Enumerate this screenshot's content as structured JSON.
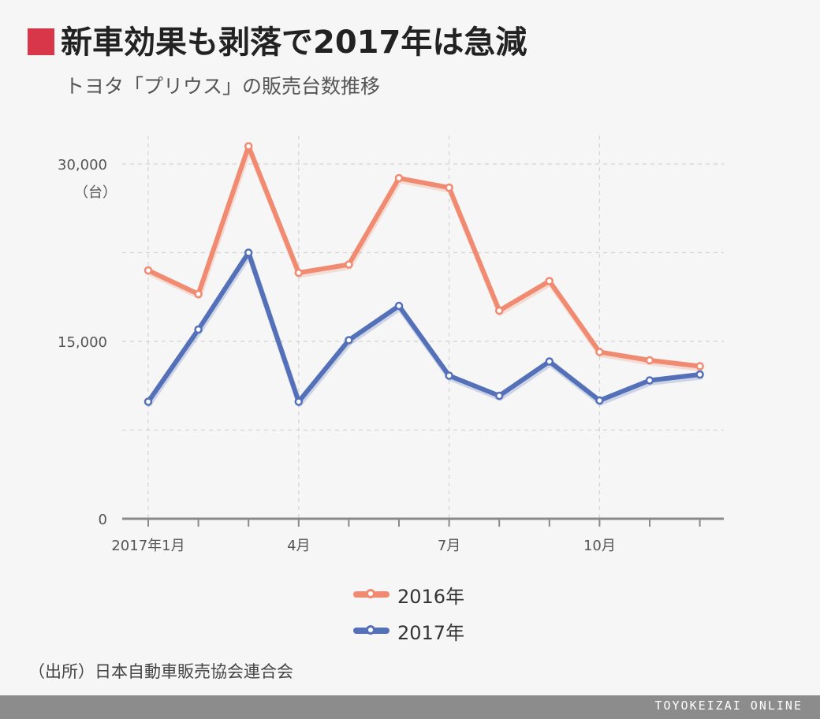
{
  "header": {
    "title": "新車効果も剥落で2017年は急減",
    "subtitle": "トヨタ「プリウス」の販売台数推移",
    "accent_color": "#d8374a"
  },
  "chart_data": {
    "type": "line",
    "x": [
      "2017年1月",
      "2",
      "3",
      "4月",
      "5",
      "6",
      "7月",
      "8",
      "9",
      "10月",
      "11",
      "12"
    ],
    "tick_labels": [
      "2017年1月",
      "",
      "",
      "4月",
      "",
      "",
      "7月",
      "",
      "",
      "10月",
      "",
      ""
    ],
    "y_ticks": [
      0,
      15000,
      30000
    ],
    "y_tick_labels": [
      "0",
      "15,000",
      "30,000"
    ],
    "y_unit": "（台）",
    "ylim": [
      0,
      32000
    ],
    "grid": true,
    "legend_position": "bottom",
    "series": [
      {
        "name": "2016年",
        "color": "#f08a70",
        "values": [
          21000,
          19000,
          31500,
          20800,
          21500,
          28800,
          28000,
          17600,
          20100,
          14100,
          13400,
          12900
        ]
      },
      {
        "name": "2017年",
        "color": "#5470b8",
        "values": [
          9900,
          16000,
          22500,
          9900,
          15100,
          18000,
          12100,
          10400,
          13300,
          10000,
          11700,
          12200
        ]
      }
    ]
  },
  "source": "（出所）日本自動車販売協会連合会",
  "footer": {
    "brand": "TOYOKEIZAI ONLINE"
  }
}
